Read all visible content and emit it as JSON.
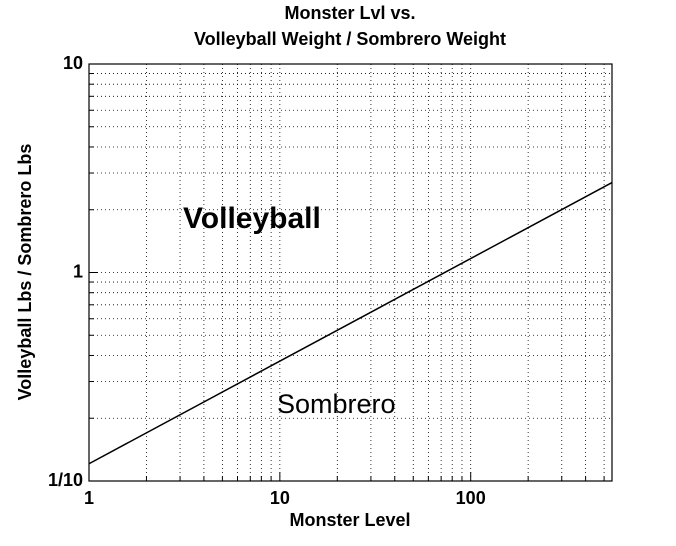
{
  "chart_data": {
    "type": "line",
    "title": [
      "Monster Lvl vs.",
      "Volleyball Weight / Sombrero Weight"
    ],
    "x_label": "Monster Level",
    "y_label": "Volleyball Lbs / Sombrero Lbs",
    "x": [
      1,
      550
    ],
    "series": [
      {
        "color": "#000000",
        "values": [
          0.121,
          2.7
        ]
      }
    ],
    "xlim": [
      1,
      550
    ],
    "ylim": [
      0.1,
      10
    ],
    "xscale": "log",
    "yscale": "log",
    "xticks": [
      1,
      10,
      100
    ],
    "yticks": [
      {
        "value": 0.1,
        "label": "1/10"
      },
      1,
      10
    ],
    "xminorticks": [
      2,
      3,
      4,
      5,
      6,
      7,
      8,
      9,
      20,
      30,
      40,
      50,
      60,
      70,
      80,
      90,
      200,
      300,
      400,
      500
    ],
    "yminorticks": [
      0.2,
      0.3,
      0.4,
      0.5,
      0.6,
      0.7,
      0.8,
      0.9,
      2,
      3,
      4,
      5,
      6,
      7,
      8,
      9
    ],
    "grid": true,
    "annotations": [
      "Volleyball",
      "Sombrero"
    ]
  }
}
